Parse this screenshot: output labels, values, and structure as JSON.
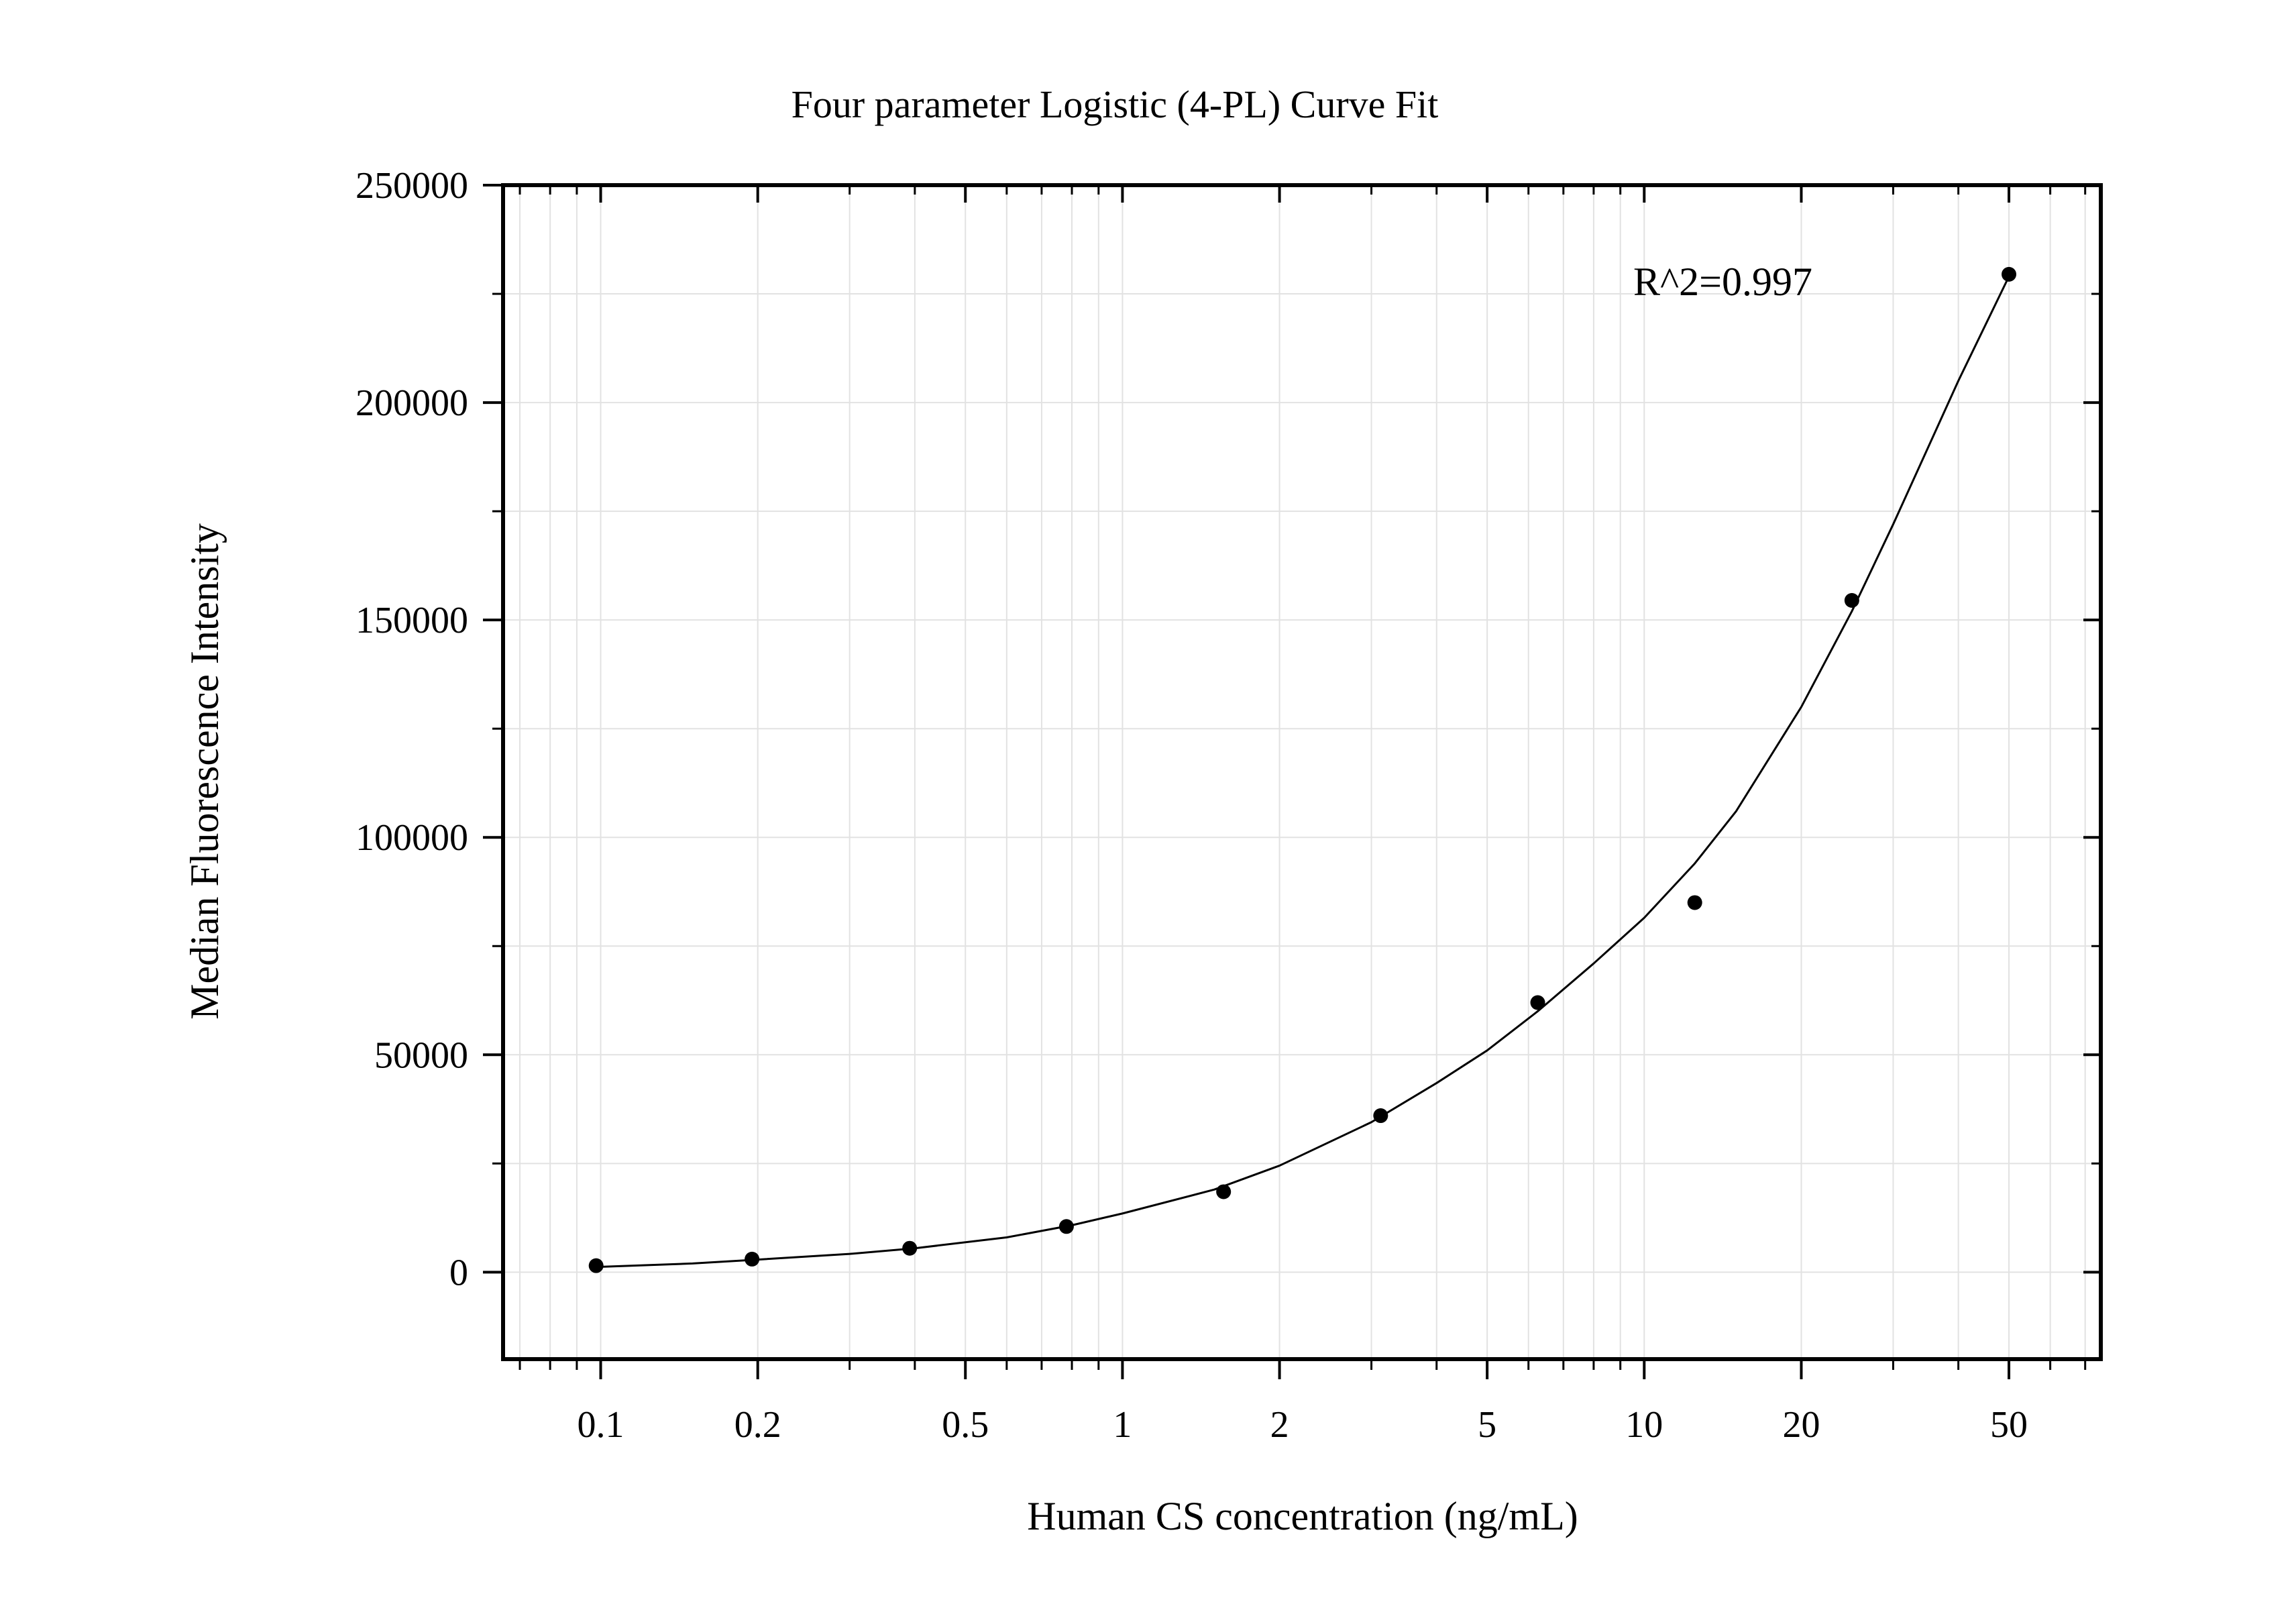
{
  "chart_data": {
    "type": "scatter",
    "title": "Four parameter Logistic (4-PL) Curve Fit",
    "xlabel": "Human CS concentration (ng/mL)",
    "ylabel": "Median Fluorescence Intensity",
    "x_scale": "log",
    "xlim": [
      0.065,
      75
    ],
    "ylim": [
      -20000,
      250000
    ],
    "x_ticks": [
      0.1,
      0.2,
      0.5,
      1,
      2,
      5,
      10,
      20,
      50
    ],
    "x_tick_labels": [
      "0.1",
      "0.2",
      "0.5",
      "1",
      "2",
      "5",
      "10",
      "20",
      "50"
    ],
    "y_ticks": [
      0,
      50000,
      100000,
      150000,
      200000,
      250000
    ],
    "y_tick_labels": [
      "0",
      "50000",
      "100000",
      "150000",
      "200000",
      "250000"
    ],
    "grid": true,
    "annotation": "R^2=0.997",
    "series": [
      {
        "x": [
          0.098,
          0.195,
          0.391,
          0.781,
          1.5625,
          3.125,
          6.25,
          12.5,
          25,
          50
        ],
        "y": [
          1500,
          3000,
          5500,
          10500,
          18500,
          36000,
          62000,
          85000,
          154500,
          229500
        ]
      }
    ],
    "fit": {
      "model": "4PL",
      "x": [
        0.098,
        0.15,
        0.2,
        0.3,
        0.4,
        0.6,
        0.8,
        1.0,
        1.5,
        2.0,
        3.0,
        4.0,
        5.0,
        6.25,
        8.0,
        10.0,
        12.5,
        15.0,
        20.0,
        25.0,
        30.0,
        40.0,
        50.0
      ],
      "y": [
        1200,
        2000,
        2900,
        4200,
        5500,
        8000,
        10800,
        13500,
        19000,
        24500,
        34500,
        43500,
        51000,
        60000,
        71000,
        81500,
        94000,
        106000,
        130000,
        152000,
        172000,
        205000,
        229000
      ]
    },
    "colors": {
      "points": "#000000",
      "curve": "#000000",
      "grid": "#e2e2e2",
      "axis": "#000000"
    }
  }
}
